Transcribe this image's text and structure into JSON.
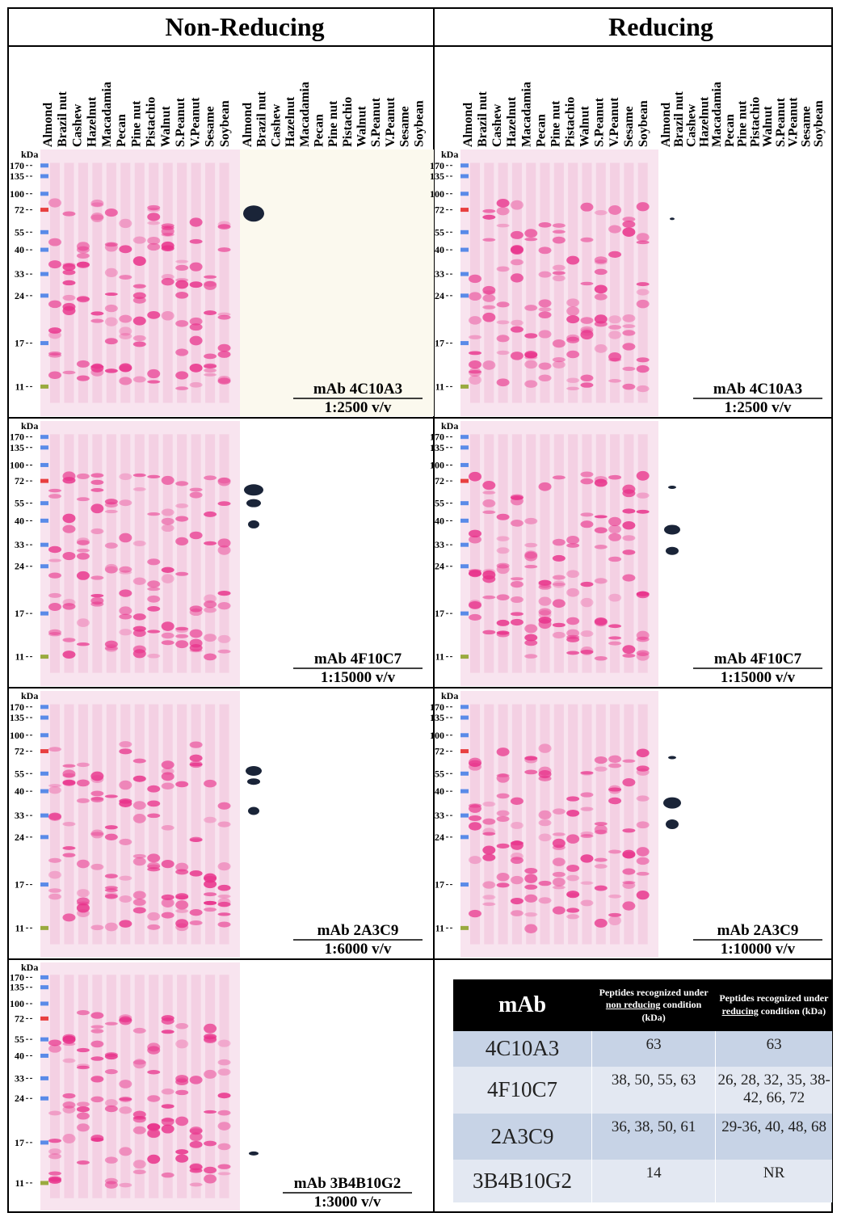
{
  "headers": [
    "Non-Reducing",
    "Reducing"
  ],
  "lanes": [
    "Almond",
    "Brazil nut",
    "Cashew",
    "Hazelnut",
    "Macadamia",
    "Pecan",
    "Pine nut",
    "Pistachio",
    "Walnut",
    "S.Peanut",
    "V.Peanut",
    "Sesame",
    "Soybean"
  ],
  "ladder": {
    "unit": "kDa",
    "marks": [
      "170",
      "135",
      "100",
      "72",
      "55",
      "40",
      "33",
      "24",
      "17",
      "11"
    ]
  },
  "panels": [
    {
      "antibody": "mAb 4C10A3",
      "dilution": "1:2500 v/v"
    },
    {
      "antibody": "mAb 4C10A3",
      "dilution": "1:2500 v/v"
    },
    {
      "antibody": "mAb 4F10C7",
      "dilution": "1:15000 v/v"
    },
    {
      "antibody": "mAb 4F10C7",
      "dilution": "1:15000 v/v"
    },
    {
      "antibody": "mAb 2A3C9",
      "dilution": "1:6000 v/v"
    },
    {
      "antibody": "mAb 2A3C9",
      "dilution": "1:10000 v/v"
    },
    {
      "antibody": "mAb 3B4B10G2",
      "dilution": "1:3000 v/v"
    }
  ],
  "table": {
    "header": [
      "mAb",
      {
        "pre": "Peptides recognized under ",
        "em": "non reducing",
        "post": " condition (kDa)"
      },
      {
        "pre": "Peptides recognized under ",
        "em": "reducing",
        "post": " condition (kDa)"
      }
    ],
    "rows": [
      [
        "4C10A3",
        "63",
        "63"
      ],
      [
        "4F10C7",
        "38, 50, 55, 63",
        "26, 28, 32, 35, 38-42, 66, 72"
      ],
      [
        "2A3C9",
        "36, 38, 50, 61",
        "29-36, 40, 48, 68"
      ],
      [
        "3B4B10G2",
        "14",
        "NR"
      ]
    ]
  }
}
